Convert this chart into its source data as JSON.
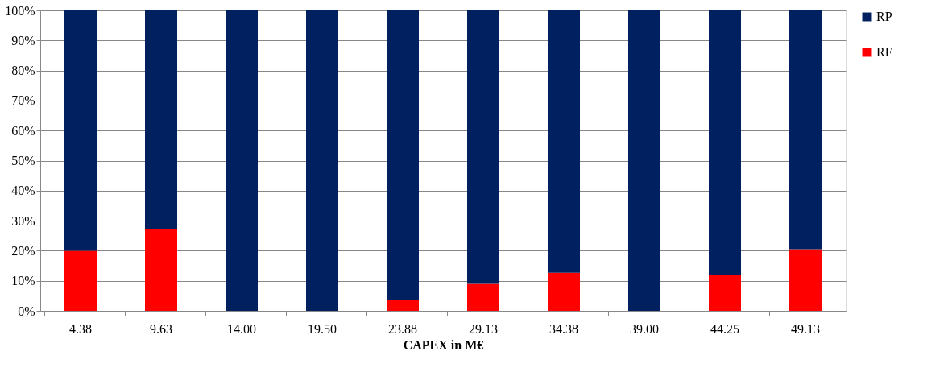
{
  "chart_data": {
    "type": "bar",
    "stacked": true,
    "xlabel": "CAPEX in M€",
    "categories": [
      "4.38",
      "9.63",
      "14.00",
      "19.50",
      "23.88",
      "29.13",
      "34.38",
      "39.00",
      "44.25",
      "49.13"
    ],
    "series": [
      {
        "name": "RF",
        "color": "#ff0000",
        "values": [
          20,
          27.1,
          0,
          0,
          3.6,
          9.0,
          12.7,
          0,
          11.9,
          20.5
        ]
      },
      {
        "name": "RP",
        "color": "#002060",
        "values": [
          80,
          72.9,
          100,
          100,
          96.4,
          91.0,
          87.3,
          100,
          88.1,
          79.5
        ]
      }
    ],
    "ylim": [
      0,
      100
    ],
    "yticks": [
      {
        "value": 0,
        "label": "0%"
      },
      {
        "value": 10,
        "label": "10%"
      },
      {
        "value": 20,
        "label": "20%"
      },
      {
        "value": 30,
        "label": "30%"
      },
      {
        "value": 40,
        "label": "40%"
      },
      {
        "value": 50,
        "label": "50%"
      },
      {
        "value": 60,
        "label": "60%"
      },
      {
        "value": 70,
        "label": "70%"
      },
      {
        "value": 80,
        "label": "80%"
      },
      {
        "value": 90,
        "label": "90%"
      },
      {
        "value": 100,
        "label": "100%"
      }
    ],
    "grid": "y",
    "legend": "top right"
  }
}
